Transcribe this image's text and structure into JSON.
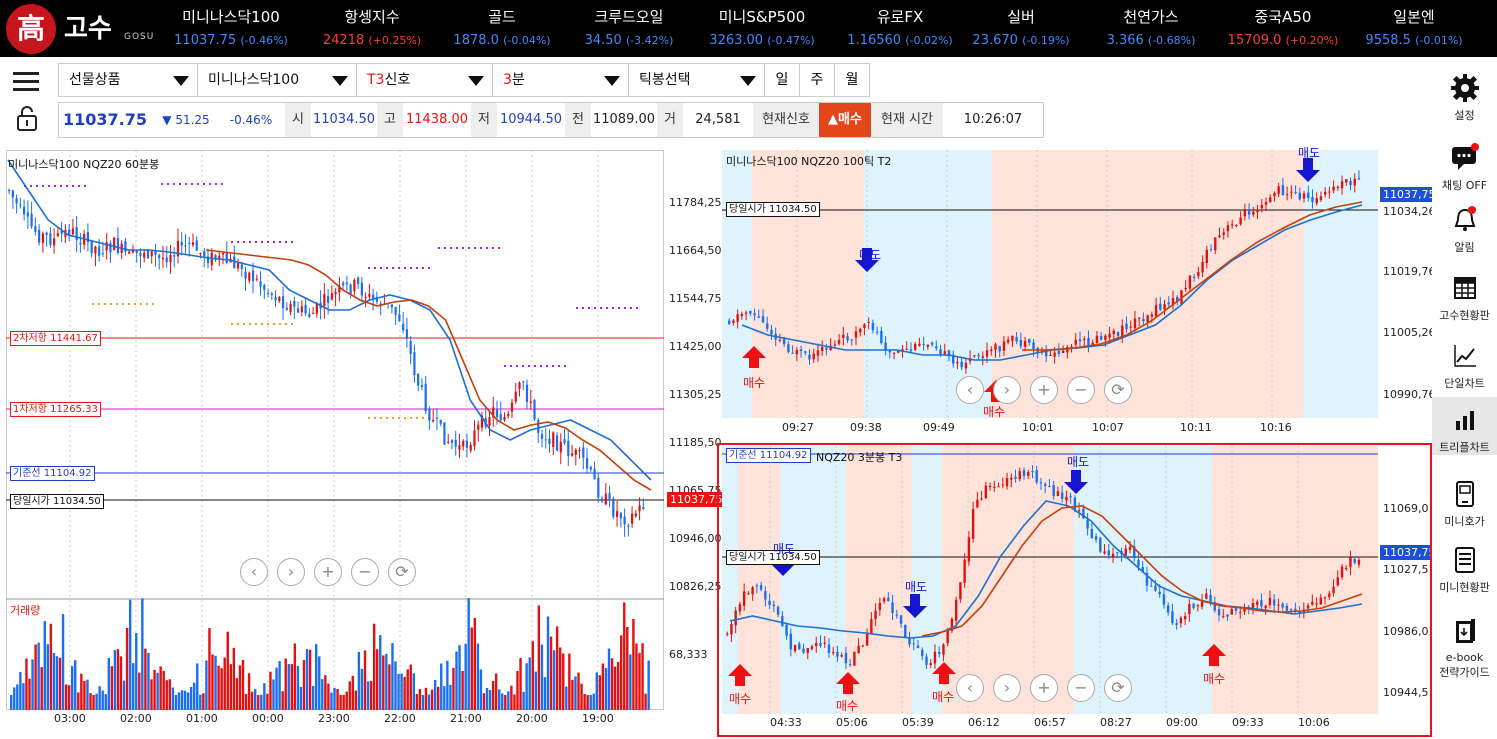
{
  "logo": {
    "name": "고수",
    "sub": "GOSU",
    "symbol": "高"
  },
  "ticker": [
    {
      "name": "미니나스닥100",
      "value": "11037.75",
      "change": "(-0.46%)",
      "color": "blue"
    },
    {
      "name": "항셍지수",
      "value": "24218",
      "change": "(+0.25%)",
      "color": "red"
    },
    {
      "name": "골드",
      "value": "1878.0",
      "change": "(-0.04%)",
      "color": "blue"
    },
    {
      "name": "크루드오일",
      "value": "34.50",
      "change": "(-3.42%)",
      "color": "blue"
    },
    {
      "name": "미니S&P500",
      "value": "3263.00",
      "change": "(-0.47%)",
      "color": "blue"
    },
    {
      "name": "유로FX",
      "value": "1.16560",
      "change": "(-0.02%)",
      "color": "blue"
    },
    {
      "name": "실버",
      "value": "23.670",
      "change": "(-0.19%)",
      "color": "blue"
    },
    {
      "name": "천연가스",
      "value": "3.366",
      "change": "(-0.68%)",
      "color": "blue"
    },
    {
      "name": "중국A50",
      "value": "15709.0",
      "change": "(+0.20%)",
      "color": "red"
    },
    {
      "name": "일본엔",
      "value": "9558.5",
      "change": "(-0.01%)",
      "color": "blue"
    }
  ],
  "selectors": {
    "product": "선물상품",
    "symbol": "미니나스닥100",
    "signal_prefix": "T3",
    "signal": "신호",
    "interval_prefix": "3",
    "interval": "분",
    "tick": "틱봉선택",
    "period_buttons": [
      "일",
      "주",
      "월"
    ]
  },
  "price_row": {
    "last": "11037.75",
    "change": "▼ 51.25",
    "change_pct": "-0.46%",
    "open_label": "시",
    "open": "11034.50",
    "high_label": "고",
    "high": "11438.00",
    "low_label": "저",
    "low": "10944.50",
    "prev_label": "전",
    "prev": "11089.00",
    "vol_label": "거",
    "volume": "24,581",
    "signal_label": "현재신호",
    "signal_value": "▲매수",
    "time_label": "현재 시간",
    "time": "10:26:07"
  },
  "sidebar": [
    {
      "label": "설정",
      "icon": "gear-icon"
    },
    {
      "label": "채팅 OFF",
      "icon": "chat-icon"
    },
    {
      "label": "알림",
      "icon": "bell-icon"
    },
    {
      "label": "고수현황판",
      "icon": "grid-icon"
    },
    {
      "label": "단일차트",
      "icon": "line-chart-icon"
    },
    {
      "label": "트리플차트",
      "icon": "bar-chart-icon"
    },
    {
      "label": "미니호가",
      "icon": "phone-icon"
    },
    {
      "label": "미니현황판",
      "icon": "list-icon"
    },
    {
      "label": "e-book",
      "label2": "전략가이드",
      "icon": "ebook-icon"
    }
  ],
  "left_chart": {
    "title": "미니나스닥100  NQZ20  60분봉",
    "levels": {
      "resist2": "2차저항 11441.67",
      "resist1": "1차저항 11265.33",
      "base": "기준선 11104.92",
      "open": "당일시가 11034.50"
    },
    "y_labels": [
      "11784,25",
      "11664,50",
      "11544,75",
      "11425,00",
      "11305,25",
      "11185,50",
      "11065,75",
      "10946,00",
      "10826,25"
    ],
    "current": "11037,75",
    "x_labels": [
      "03:00",
      "02:00",
      "01:00",
      "00:00",
      "23:00",
      "22:00",
      "21:00",
      "20:00",
      "19:00"
    ],
    "volume_title": "거래량",
    "volume_label": "68,333"
  },
  "tr_chart": {
    "title": "미니나스닥100  NQZ20  100틱  T2",
    "open_level": "당일시가 11034.50",
    "y_labels": [
      "11034,26",
      "11019,76",
      "11005,26",
      "10990,76"
    ],
    "current": "11037,75",
    "x_labels": [
      "09:27",
      "09:38",
      "09:49",
      "10:01",
      "10:07",
      "10:11",
      "10:16"
    ],
    "buy": "매수",
    "sell": "매도"
  },
  "br_chart": {
    "title": "NQZ20  3분봉  T3",
    "base_level": "기준선 11104.92",
    "open_level": "당일시가 11034.50",
    "y_labels": [
      "11069,01",
      "11027,51",
      "10986,01",
      "10944,51"
    ],
    "current": "11037,75",
    "x_labels": [
      "04:33",
      "05:06",
      "05:39",
      "06:12",
      "06:57",
      "08:27",
      "09:00",
      "09:33",
      "10:06"
    ],
    "buy": "매수",
    "sell": "매도"
  },
  "nav_buttons": [
    "‹",
    "›",
    "+",
    "−",
    "⟳"
  ],
  "colors": {
    "up": "#e11111",
    "down": "#1a6ff0",
    "ma_blue": "#1f6fd1",
    "ma_red": "#c2410c",
    "buy_zone": "#fde3d9",
    "sell_zone": "#def3fb"
  }
}
